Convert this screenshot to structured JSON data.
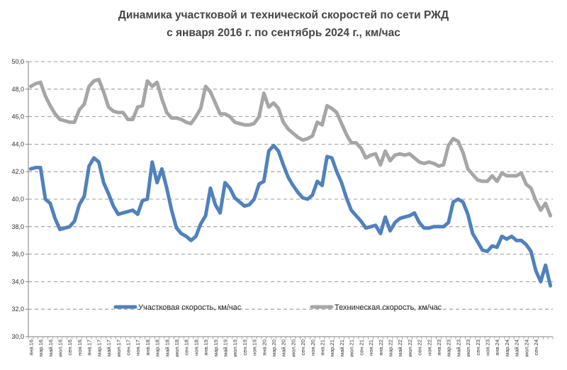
{
  "chart_data": {
    "type": "line",
    "title_lines": [
      "Динамика участковой и технической скоростей по сети РЖД",
      "с января 2016 г. по сентябрь 2024 г., км/час"
    ],
    "ylim": [
      30,
      50
    ],
    "yticks": [
      "30,0",
      "32,0",
      "34,0",
      "36,0",
      "38,0",
      "40,0",
      "42,0",
      "44,0",
      "46,0",
      "48,0",
      "50,0"
    ],
    "grid": "horizontal dashed",
    "legend_position": "bottom-inside",
    "x_labels": [
      "янв.16",
      "мар.16",
      "май.16",
      "июл.16",
      "сен.16",
      "ноя.16",
      "янв.17",
      "мар.17",
      "май.17",
      "июл.17",
      "сен.17",
      "ноя.17",
      "янв.18",
      "мар.18",
      "май.18",
      "июл.18",
      "сен.18",
      "ноя.18",
      "янв.19",
      "мар.19",
      "май.19",
      "июл.19",
      "сен.19",
      "ноя.19",
      "янв.20",
      "мар.20",
      "май.20",
      "июл.20",
      "сен.20",
      "ноя.20",
      "янв.21",
      "мар.21",
      "май.21",
      "июл.21",
      "сен.21",
      "ноя.21",
      "янв.22",
      "мар.22",
      "май.22",
      "июл.22",
      "сен.22",
      "ноя.22",
      "янв.23",
      "мар.23",
      "май.23",
      "июл.23",
      "сен.23",
      "ноя.23",
      "янв.24",
      "мар.24",
      "май.24",
      "июл.24",
      "сен.24"
    ],
    "series": [
      {
        "name": "Участковая скорость, км/час",
        "color": "#4f81bd",
        "values": [
          42.2,
          42.3,
          42.3,
          40.0,
          39.7,
          38.6,
          37.8,
          37.9,
          38.0,
          38.4,
          39.6,
          40.2,
          42.4,
          43.0,
          42.7,
          41.2,
          40.4,
          39.5,
          38.9,
          39.0,
          39.1,
          39.2,
          38.9,
          39.9,
          40.0,
          42.7,
          41.2,
          42.2,
          40.8,
          39.2,
          37.9,
          37.5,
          37.3,
          37.0,
          37.3,
          38.2,
          38.8,
          40.8,
          39.6,
          39.0,
          41.2,
          40.8,
          40.1,
          39.8,
          39.5,
          39.6,
          40.0,
          41.1,
          41.3,
          43.5,
          43.9,
          43.5,
          42.5,
          41.6,
          41.0,
          40.5,
          40.1,
          40.0,
          40.3,
          41.3,
          41.0,
          43.1,
          43.0,
          42.0,
          41.2,
          40.1,
          39.2,
          38.8,
          38.4,
          37.9,
          38.0,
          38.1,
          37.5,
          38.7,
          37.7,
          38.3,
          38.6,
          38.7,
          38.8,
          39.0,
          38.3,
          37.9,
          37.9,
          38.0,
          38.0,
          38.0,
          38.3,
          39.8,
          40.0,
          39.8,
          38.9,
          37.5,
          36.9,
          36.3,
          36.2,
          36.6,
          36.5,
          37.3,
          37.1,
          37.3,
          37.0,
          37.0,
          36.7,
          36.2,
          34.8,
          34.0,
          35.2,
          33.7
        ]
      },
      {
        "name": "Техническая скорость, км/час",
        "color": "#a6a6a6",
        "values": [
          48.2,
          48.4,
          48.5,
          47.5,
          46.8,
          46.2,
          45.8,
          45.7,
          45.6,
          45.6,
          46.5,
          46.9,
          48.2,
          48.6,
          48.7,
          47.8,
          46.7,
          46.4,
          46.3,
          46.3,
          45.8,
          45.8,
          46.7,
          46.8,
          48.6,
          48.2,
          48.5,
          47.3,
          46.3,
          45.9,
          45.9,
          45.8,
          45.6,
          45.5,
          46.0,
          46.6,
          48.2,
          47.8,
          47.0,
          46.2,
          46.2,
          46.0,
          45.6,
          45.5,
          45.4,
          45.4,
          45.5,
          46.0,
          47.7,
          46.7,
          47.0,
          46.6,
          45.6,
          45.1,
          44.8,
          44.5,
          44.3,
          44.4,
          44.6,
          45.6,
          45.4,
          46.8,
          46.6,
          46.3,
          45.5,
          44.7,
          44.1,
          44.1,
          43.7,
          43.0,
          43.2,
          43.3,
          42.5,
          43.5,
          42.8,
          43.2,
          43.3,
          43.2,
          43.3,
          43.0,
          42.7,
          42.6,
          42.7,
          42.6,
          42.4,
          42.5,
          43.9,
          44.4,
          44.2,
          43.4,
          42.2,
          41.8,
          41.4,
          41.3,
          41.3,
          41.7,
          41.3,
          41.9,
          41.7,
          41.7,
          41.7,
          41.9,
          41.1,
          40.8,
          39.9,
          39.2,
          39.7,
          38.8
        ]
      }
    ]
  }
}
